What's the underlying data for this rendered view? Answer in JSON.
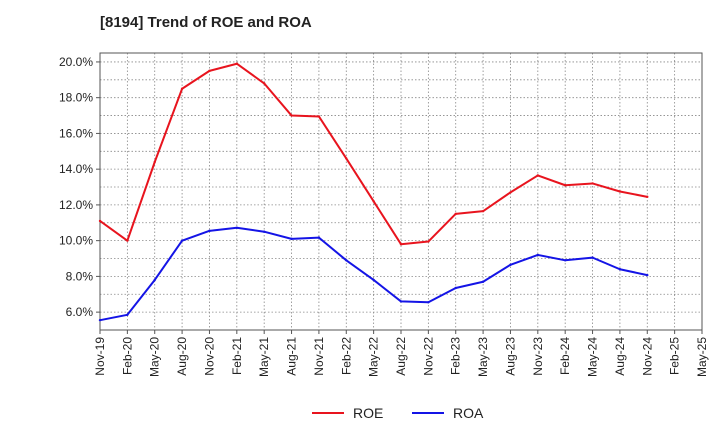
{
  "chart_data": {
    "type": "line",
    "title": "[8194]  Trend of ROE and ROA",
    "categories": [
      "Nov-19",
      "Feb-20",
      "May-20",
      "Aug-20",
      "Nov-20",
      "Feb-21",
      "May-21",
      "Aug-21",
      "Nov-21",
      "Feb-22",
      "May-22",
      "Aug-22",
      "Nov-22",
      "Feb-23",
      "May-23",
      "Aug-23",
      "Nov-23",
      "Feb-24",
      "May-24",
      "Aug-24",
      "Nov-24",
      "Feb-25",
      "May-25"
    ],
    "y_ticks": [
      "6.0%",
      "8.0%",
      "10.0%",
      "12.0%",
      "14.0%",
      "16.0%",
      "18.0%",
      "20.0%"
    ],
    "ylim": [
      5.0,
      20.5
    ],
    "grid": true,
    "legend_position": "bottom-center",
    "series": [
      {
        "name": "ROE",
        "color": "#e8141e",
        "values": [
          11.1,
          10.0,
          14.4,
          18.5,
          19.5,
          19.9,
          18.8,
          17.0,
          16.95,
          14.6,
          12.2,
          9.8,
          9.95,
          11.5,
          11.65,
          12.7,
          13.65,
          13.1,
          13.2,
          12.75,
          12.45,
          null,
          null
        ]
      },
      {
        "name": "ROA",
        "color": "#1414e6",
        "values": [
          5.55,
          5.85,
          7.8,
          10.0,
          10.55,
          10.72,
          10.5,
          10.1,
          10.17,
          8.9,
          7.8,
          6.6,
          6.55,
          7.35,
          7.7,
          8.65,
          9.2,
          8.9,
          9.05,
          8.4,
          8.07,
          null,
          null
        ]
      }
    ]
  }
}
